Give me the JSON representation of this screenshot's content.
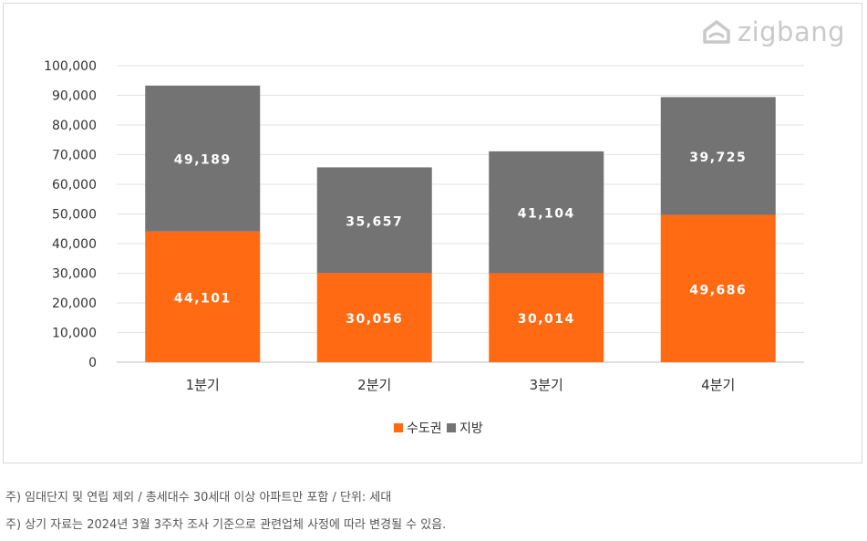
{
  "brand": {
    "logo_text": "zigbang",
    "logo_icon": "zigbang-house-icon"
  },
  "chart_data": {
    "type": "bar",
    "stacked": true,
    "categories": [
      "1분기",
      "2분기",
      "3분기",
      "4분기"
    ],
    "series": [
      {
        "name": "수도권",
        "values": [
          44101,
          30056,
          30014,
          49686
        ],
        "labels": [
          "44,101",
          "30,056",
          "30,014",
          "49,686"
        ],
        "color": "#ff6a13"
      },
      {
        "name": "지방",
        "values": [
          49189,
          35657,
          41104,
          39725
        ],
        "labels": [
          "49,189",
          "35,657",
          "41,104",
          "39,725"
        ],
        "color": "#737373"
      }
    ],
    "ylim": [
      0,
      100000
    ],
    "yticks": [
      "0",
      "10,000",
      "20,000",
      "30,000",
      "40,000",
      "50,000",
      "60,000",
      "70,000",
      "80,000",
      "90,000",
      "100,000"
    ],
    "grid": true,
    "legend_position": "bottom-center"
  },
  "notes": [
    "주) 임대단지 및 연립 제외 / 총세대수 30세대 이상 아파트만 포함 / 단위: 세대",
    "주) 상기 자료는 2024년 3월 3주차 조사 기준으로 관련업체 사정에 따라 변경될 수 있음."
  ]
}
